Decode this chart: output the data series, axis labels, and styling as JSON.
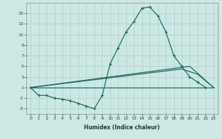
{
  "xlabel": "Humidex (Indice chaleur)",
  "x_values": [
    0,
    1,
    2,
    3,
    4,
    5,
    6,
    7,
    8,
    9,
    10,
    11,
    12,
    13,
    14,
    15,
    16,
    17,
    18,
    19,
    20,
    21,
    22,
    23
  ],
  "line_main": [
    1,
    -0.5,
    -0.5,
    -1,
    -1.2,
    -1.5,
    -2,
    -2.5,
    -3,
    -0.5,
    5.5,
    8.5,
    11.5,
    13.5,
    16,
    16.2,
    14.5,
    11.5,
    7,
    5,
    3.0,
    2.0,
    1.0,
    null
  ],
  "line2_x": [
    0,
    20,
    23
  ],
  "line2_y": [
    1,
    5,
    1
  ],
  "line3_x": [
    0,
    19,
    21,
    23
  ],
  "line3_y": [
    1,
    4.5,
    3.5,
    1
  ],
  "line4_x": [
    0,
    23
  ],
  "line4_y": [
    1,
    1
  ],
  "ylim": [
    -4,
    17
  ],
  "xlim": [
    -0.5,
    23.5
  ],
  "yticks": [
    -3,
    -1,
    1,
    3,
    5,
    7,
    9,
    11,
    13,
    15
  ],
  "xticks": [
    0,
    1,
    2,
    3,
    4,
    5,
    6,
    7,
    8,
    9,
    10,
    11,
    12,
    13,
    14,
    15,
    16,
    17,
    18,
    19,
    20,
    21,
    22,
    23
  ],
  "line_color": "#1a6b5a",
  "bg_color": "#cce8e4",
  "grid_color": "#aaccc8"
}
